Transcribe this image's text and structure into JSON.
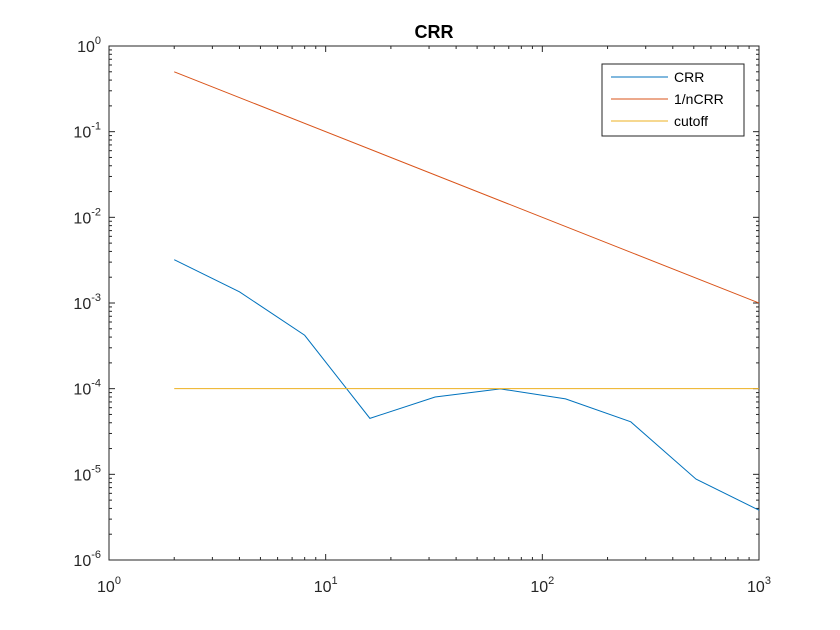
{
  "chart_data": {
    "type": "line",
    "title": "CRR",
    "xlabel": "",
    "ylabel": "",
    "xscale": "log",
    "yscale": "log",
    "xlim": [
      1,
      1000
    ],
    "ylim": [
      1e-06,
      1
    ],
    "grid": false,
    "legend_position": "top-right",
    "x_ticks": [
      {
        "base": "10",
        "exp": "0"
      },
      {
        "base": "10",
        "exp": "1"
      },
      {
        "base": "10",
        "exp": "2"
      },
      {
        "base": "10",
        "exp": "3"
      }
    ],
    "y_ticks": [
      {
        "base": "10",
        "exp": "-6"
      },
      {
        "base": "10",
        "exp": "-5"
      },
      {
        "base": "10",
        "exp": "-4"
      },
      {
        "base": "10",
        "exp": "-3"
      },
      {
        "base": "10",
        "exp": "-2"
      },
      {
        "base": "10",
        "exp": "-1"
      },
      {
        "base": "10",
        "exp": "0"
      }
    ],
    "series": [
      {
        "name": "CRR",
        "color": "#0072BD",
        "x": [
          2,
          4,
          8,
          16,
          32,
          64,
          128,
          256,
          512,
          1024
        ],
        "y": [
          0.0032,
          0.00135,
          0.00042,
          4.5e-05,
          8e-05,
          9.95e-05,
          7.6e-05,
          4.1e-05,
          8.8e-06,
          3.7e-06
        ]
      },
      {
        "name": "1/nCRR",
        "color": "#D95319",
        "x": [
          2,
          1024
        ],
        "y": [
          0.5,
          0.0009766
        ]
      },
      {
        "name": "cutoff",
        "color": "#EDB120",
        "x": [
          2,
          1024
        ],
        "y": [
          0.0001,
          0.0001
        ]
      }
    ]
  }
}
